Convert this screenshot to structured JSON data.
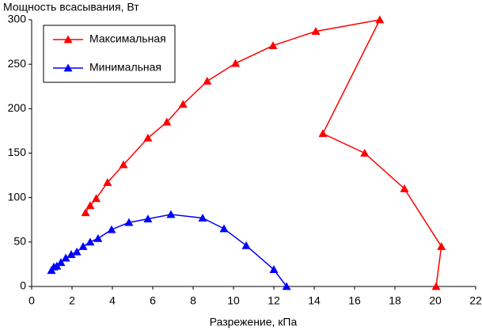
{
  "chart_data": {
    "type": "line",
    "y_label": "Мощность всасывания, Вт",
    "x_label": "Разрежение, кПа",
    "xlim": [
      0,
      22
    ],
    "xticks": [
      0,
      2,
      4,
      6,
      8,
      10,
      12,
      14,
      16,
      18,
      20,
      22
    ],
    "ylim": [
      0,
      300
    ],
    "yticks": [
      0,
      50,
      100,
      150,
      200,
      250,
      300
    ],
    "grid": false,
    "legend": "upper left",
    "series": [
      {
        "name": "Максимальная",
        "color": "#ff0000",
        "x": [
          2.67,
          2.9,
          3.2,
          3.76,
          4.55,
          5.76,
          6.7,
          7.5,
          8.7,
          10.1,
          11.96,
          14.08,
          17.25,
          14.43,
          16.5,
          18.47,
          20.3,
          20.04
        ],
        "values": [
          83,
          91,
          99,
          117,
          137,
          167,
          185,
          205,
          231,
          251,
          271,
          287,
          300,
          172,
          150,
          110,
          45,
          0
        ]
      },
      {
        "name": "Минимальная",
        "color": "#0000ff",
        "x": [
          0.98,
          1.1,
          1.25,
          1.45,
          1.69,
          1.96,
          2.24,
          2.55,
          2.9,
          3.29,
          3.96,
          4.82,
          5.76,
          6.9,
          8.47,
          9.53,
          10.63,
          12.0,
          12.63
        ],
        "values": [
          18,
          22,
          23,
          27,
          32,
          36,
          39,
          45,
          50,
          54,
          64,
          72,
          76,
          81,
          77,
          65,
          46,
          19,
          0
        ]
      }
    ]
  }
}
